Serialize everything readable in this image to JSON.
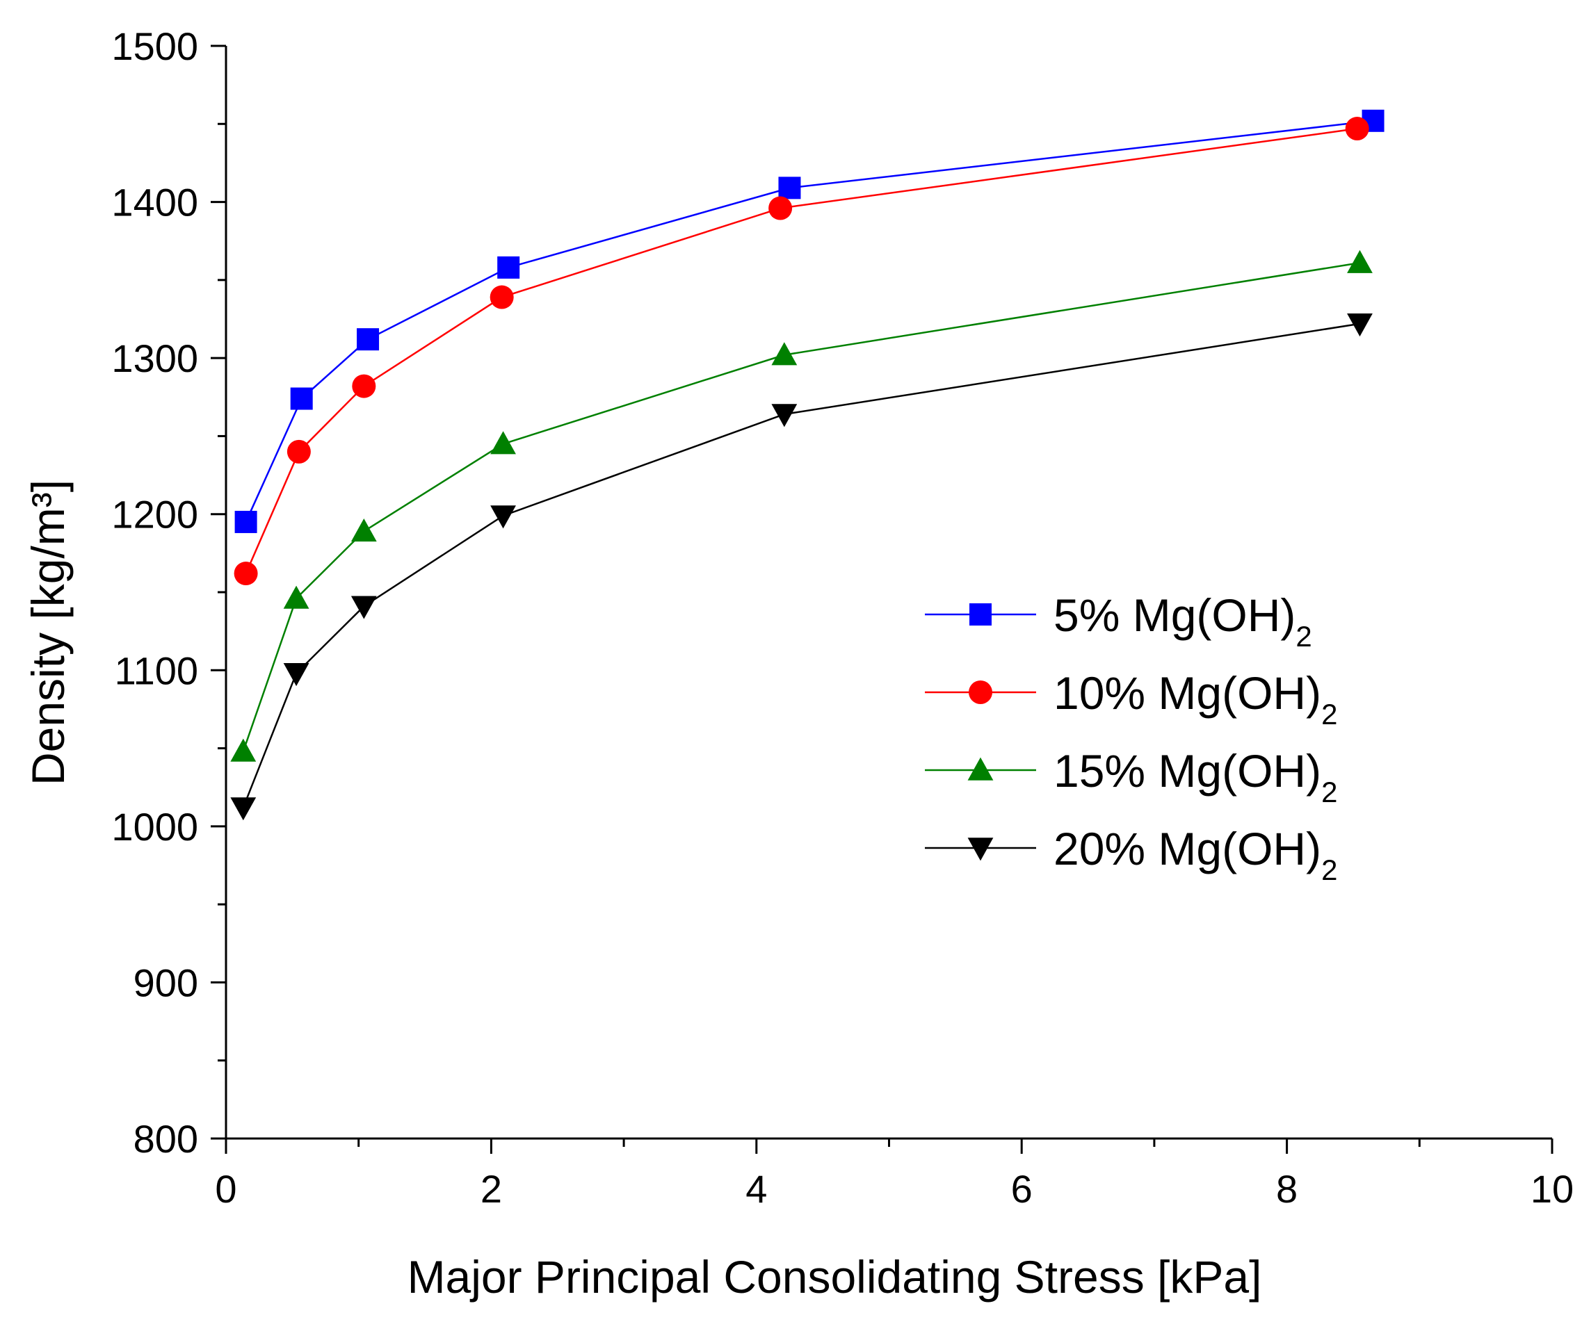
{
  "chart_data": {
    "type": "line",
    "xlabel": "Major Principal Consolidating Stress [kPa]",
    "ylabel": "Density [kg/m³]",
    "xlim": [
      0,
      10
    ],
    "ylim": [
      800,
      1500
    ],
    "xticks": [
      0,
      2,
      4,
      6,
      8,
      10
    ],
    "yticks": [
      800,
      900,
      1000,
      1100,
      1200,
      1300,
      1400,
      1500
    ],
    "grid": false,
    "legend_position": "right-middle",
    "series": [
      {
        "name": "5% Mg(OH)",
        "subscript": "2",
        "color": "#0000ff",
        "marker": "square",
        "x": [
          0.15,
          0.57,
          1.07,
          2.13,
          4.25,
          8.65
        ],
        "y": [
          1195,
          1274,
          1312,
          1358,
          1409,
          1452
        ]
      },
      {
        "name": "10% Mg(OH)",
        "subscript": "2",
        "color": "#ff0000",
        "marker": "circle",
        "x": [
          0.15,
          0.55,
          1.04,
          2.08,
          4.18,
          8.53
        ],
        "y": [
          1162,
          1240,
          1282,
          1339,
          1396,
          1447
        ]
      },
      {
        "name": "15% Mg(OH)",
        "subscript": "2",
        "color": "#008000",
        "marker": "triangle-up",
        "x": [
          0.13,
          0.53,
          1.04,
          2.09,
          4.21,
          8.55
        ],
        "y": [
          1048,
          1146,
          1189,
          1245,
          1302,
          1361
        ]
      },
      {
        "name": "20% Mg(OH)",
        "subscript": "2",
        "color": "#000000",
        "marker": "triangle-down",
        "x": [
          0.13,
          0.53,
          1.04,
          2.09,
          4.21,
          8.55
        ],
        "y": [
          1012,
          1098,
          1141,
          1199,
          1264,
          1322
        ]
      }
    ]
  }
}
